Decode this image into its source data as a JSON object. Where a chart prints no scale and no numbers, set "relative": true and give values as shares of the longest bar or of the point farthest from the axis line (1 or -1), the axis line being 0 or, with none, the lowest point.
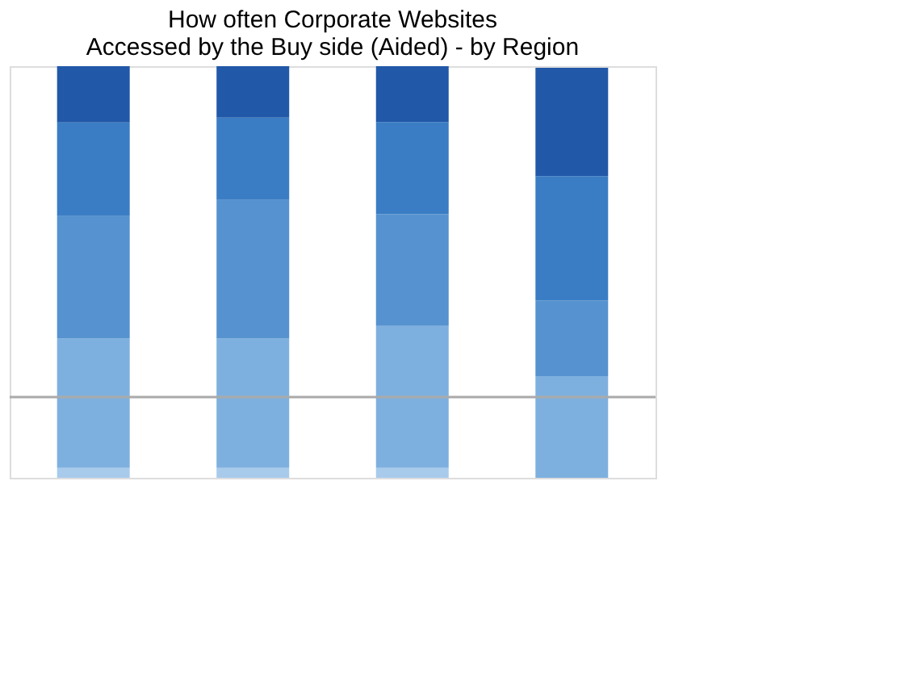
{
  "chart_data": {
    "type": "bar",
    "title": [
      "How often Corporate Websites",
      "Accessed by the Buy side (Aided) - by Region"
    ],
    "categories": [
      null,
      null,
      null,
      null
    ],
    "stacked": true,
    "relative": true,
    "legend": false,
    "series": [
      {
        "color": "#a8cbec",
        "values": [
          0.024,
          0.024,
          0.024,
          null
        ]
      },
      {
        "color": "#7eb0df",
        "values": [
          0.314,
          0.314,
          0.345,
          0.247
        ]
      },
      {
        "color": "#5592cf",
        "values": [
          0.298,
          0.337,
          0.271,
          0.184
        ]
      },
      {
        "color": "#3a7dc4",
        "values": [
          0.227,
          0.2,
          0.224,
          0.302
        ]
      },
      {
        "color": "#2158a8",
        "values": [
          0.137,
          0.125,
          0.136,
          0.263
        ]
      }
    ],
    "ref_lines": [
      {
        "axis": "y",
        "value": 0.196,
        "color": "#aaaaaa"
      }
    ]
  }
}
